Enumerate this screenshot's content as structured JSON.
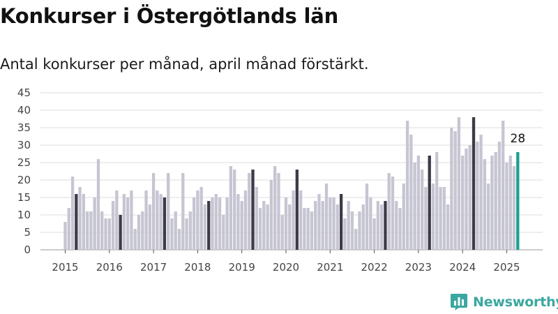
{
  "header": {
    "title": "Konkurser i Östergötlands län",
    "subtitle": "Antal konkurser per månad, april månad förstärkt."
  },
  "brand": {
    "name": "Newsworthy",
    "color": "#3aa7a0"
  },
  "colors": {
    "bar": "#c6c5d2",
    "highlight": "#3d3b48",
    "latest": "#1a9f94",
    "grid": "#dddddd",
    "axis": "#444444"
  },
  "chart_data": {
    "type": "bar",
    "title": "Konkurser i Östergötlands län",
    "subtitle": "Antal konkurser per månad, april månad förstärkt.",
    "xlabel": "",
    "ylabel": "",
    "ylim": [
      0,
      45
    ],
    "yticks": [
      0,
      5,
      10,
      15,
      20,
      25,
      30,
      35,
      40,
      45
    ],
    "year_labels": [
      "2015",
      "2016",
      "2017",
      "2018",
      "2019",
      "2020",
      "2021",
      "2022",
      "2023",
      "2024",
      "2025"
    ],
    "start": "2015-01",
    "grid": true,
    "highlight_month": "april",
    "latest_label": "28",
    "values": [
      8,
      12,
      21,
      16,
      18,
      16,
      11,
      11,
      15,
      26,
      11,
      9,
      9,
      14,
      17,
      10,
      16,
      15,
      17,
      6,
      10,
      11,
      17,
      13,
      22,
      17,
      16,
      15,
      22,
      9,
      11,
      6,
      22,
      9,
      11,
      15,
      17,
      18,
      13,
      14,
      15,
      16,
      15,
      10,
      15,
      24,
      23,
      16,
      14,
      17,
      22,
      23,
      18,
      12,
      14,
      13,
      20,
      24,
      22,
      10,
      15,
      13,
      17,
      23,
      17,
      12,
      12,
      11,
      14,
      16,
      14,
      19,
      15,
      15,
      13,
      16,
      9,
      14,
      11,
      6,
      11,
      13,
      19,
      15,
      9,
      14,
      13,
      14,
      22,
      21,
      14,
      12,
      19,
      37,
      33,
      25,
      27,
      23,
      18,
      27,
      19,
      28,
      18,
      18,
      13,
      35,
      34,
      38,
      27,
      29,
      30,
      38,
      31,
      33,
      26,
      19,
      27,
      28,
      31,
      37,
      25,
      27,
      24,
      28
    ]
  }
}
